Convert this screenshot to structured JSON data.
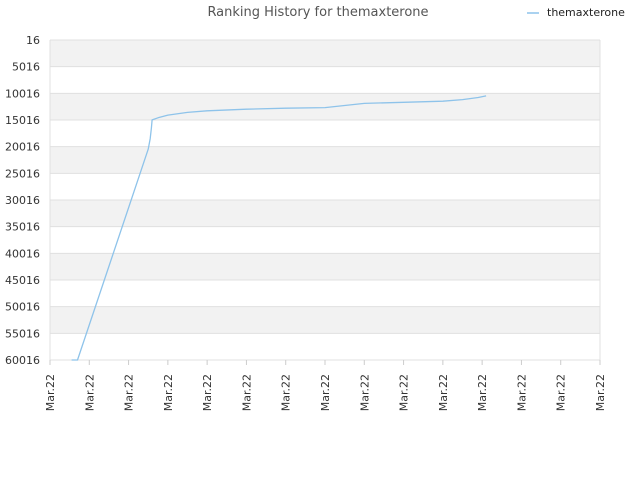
{
  "chart_data": {
    "type": "line",
    "title": "Ranking History for themaxterone",
    "xlabel": "",
    "ylabel": "",
    "y_axis_inverted": true,
    "ylim": [
      16,
      60016
    ],
    "y_ticks": [
      "16",
      "5016",
      "10016",
      "15016",
      "20016",
      "25016",
      "30016",
      "35016",
      "40016",
      "45016",
      "50016",
      "55016",
      "60016"
    ],
    "x_ticks": [
      "Mar.22",
      "Mar.22",
      "Mar.22",
      "Mar.22",
      "Mar.22",
      "Mar.22",
      "Mar.22",
      "Mar.22",
      "Mar.22",
      "Mar.22",
      "Mar.22",
      "Mar.22",
      "Mar.22",
      "Mar.22",
      "Mar.22"
    ],
    "grid": true,
    "legend_position": "top-right",
    "series": [
      {
        "name": "themaxterone",
        "color": "#8ec3ea",
        "points": [
          [
            0.055,
            60016
          ],
          [
            0.07,
            60016
          ],
          [
            0.25,
            20500
          ],
          [
            0.255,
            18500
          ],
          [
            0.258,
            16500
          ],
          [
            0.26,
            15000
          ],
          [
            0.275,
            14600
          ],
          [
            0.3,
            14100
          ],
          [
            0.35,
            13600
          ],
          [
            0.4,
            13300
          ],
          [
            0.5,
            13000
          ],
          [
            0.6,
            12800
          ],
          [
            0.7,
            12700
          ],
          [
            0.75,
            12300
          ],
          [
            0.8,
            11900
          ],
          [
            0.9,
            11700
          ],
          [
            1.0,
            11500
          ],
          [
            1.05,
            11200
          ],
          [
            1.09,
            10800
          ],
          [
            1.11,
            10500
          ]
        ]
      }
    ]
  }
}
